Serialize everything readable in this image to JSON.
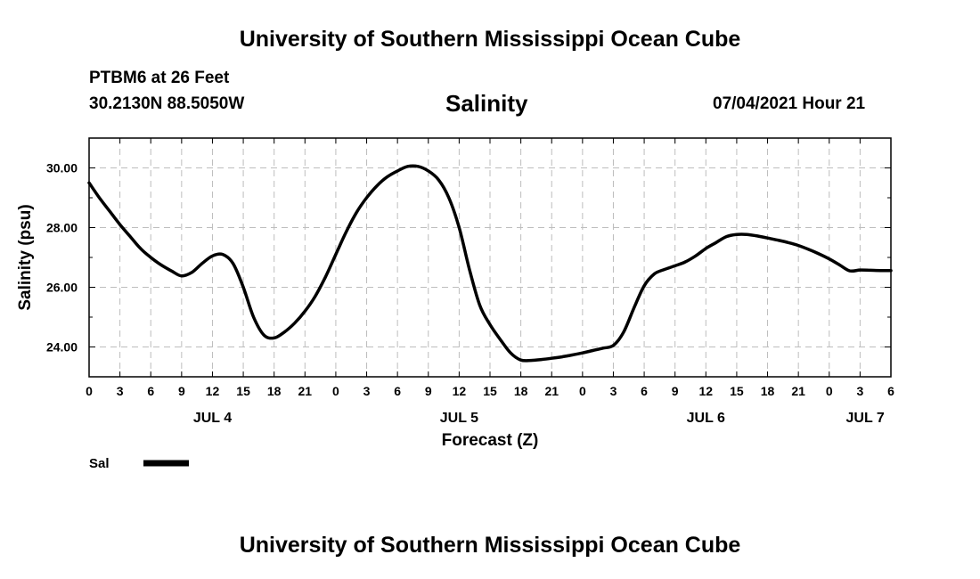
{
  "header": {
    "title_top": "University of Southern Mississippi Ocean Cube",
    "title_bottom": "University of Southern Mississippi Ocean Cube",
    "station": "PTBM6 at 26 Feet",
    "coords": "30.2130N  88.5050W",
    "timestamp": "07/04/2021 Hour 21"
  },
  "chart_data": {
    "type": "line",
    "title": "Salinity",
    "xlabel": "Forecast (Z)",
    "ylabel": "Salinity (psu)",
    "ylim": [
      23.0,
      31.0
    ],
    "xlim": [
      0,
      78
    ],
    "grid": true,
    "x_tick_values": [
      0,
      3,
      6,
      9,
      12,
      15,
      18,
      21,
      24,
      27,
      30,
      33,
      36,
      39,
      42,
      45,
      48,
      51,
      54,
      57,
      60,
      63,
      66,
      69,
      72,
      75,
      78
    ],
    "x_tick_labels": [
      "0",
      "3",
      "6",
      "9",
      "12",
      "15",
      "18",
      "21",
      "0",
      "3",
      "6",
      "9",
      "12",
      "15",
      "18",
      "21",
      "0",
      "3",
      "6",
      "9",
      "12",
      "15",
      "18",
      "21",
      "0",
      "3",
      "6"
    ],
    "y_tick_values": [
      24,
      26,
      28,
      30
    ],
    "y_tick_labels": [
      "24.00",
      "26.00",
      "28.00",
      "30.00"
    ],
    "date_labels": [
      {
        "label": "JUL 4",
        "x": 12
      },
      {
        "label": "JUL 5",
        "x": 36
      },
      {
        "label": "JUL 6",
        "x": 60
      },
      {
        "label": "JUL 7",
        "x": 75.5
      }
    ],
    "legend": {
      "label": "Sal",
      "placement": "bottom-left"
    },
    "series": [
      {
        "name": "Sal",
        "x": [
          0,
          1,
          2,
          3,
          4,
          5,
          6,
          7,
          8,
          9,
          10,
          11,
          12,
          13,
          14,
          15,
          16,
          17,
          18,
          19,
          20,
          21,
          22,
          23,
          24,
          25,
          26,
          27,
          28,
          29,
          30,
          31,
          32,
          33,
          34,
          35,
          36,
          37,
          38,
          39,
          40,
          41,
          42,
          43,
          44,
          45,
          46,
          47,
          48,
          49,
          50,
          51,
          52,
          53,
          54,
          55,
          56,
          57,
          58,
          59,
          60,
          61,
          62,
          63,
          64,
          65,
          66,
          67,
          68,
          69,
          70,
          71,
          72,
          73,
          74,
          75,
          76,
          77,
          78
        ],
        "values": [
          29.5,
          29.0,
          28.55,
          28.1,
          27.7,
          27.3,
          27.0,
          26.75,
          26.55,
          26.38,
          26.5,
          26.8,
          27.05,
          27.1,
          26.8,
          26.0,
          25.0,
          24.4,
          24.3,
          24.5,
          24.8,
          25.2,
          25.7,
          26.35,
          27.1,
          27.85,
          28.5,
          29.0,
          29.4,
          29.7,
          29.9,
          30.05,
          30.05,
          29.9,
          29.6,
          29.0,
          28.0,
          26.6,
          25.4,
          24.75,
          24.25,
          23.8,
          23.56,
          23.55,
          23.58,
          23.62,
          23.67,
          23.73,
          23.8,
          23.88,
          23.96,
          24.05,
          24.5,
          25.3,
          26.05,
          26.45,
          26.6,
          26.72,
          26.85,
          27.05,
          27.3,
          27.5,
          27.7,
          27.77,
          27.77,
          27.72,
          27.65,
          27.58,
          27.5,
          27.4,
          27.27,
          27.12,
          26.95,
          26.75,
          26.55,
          26.58,
          26.57,
          26.56,
          26.56
        ]
      }
    ]
  }
}
